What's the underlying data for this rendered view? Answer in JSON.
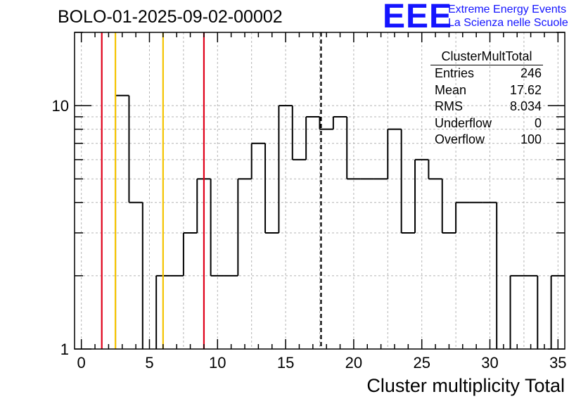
{
  "title": "BOLO-01-2025-09-02-00002",
  "logo": {
    "letters": "EEE",
    "line1": "Extreme Energy Events",
    "line2": "La Scienza nelle Scuole",
    "color": "#1414ff"
  },
  "stats": {
    "name": "ClusterMultTotal",
    "rows": [
      {
        "label": "Entries",
        "value": "246"
      },
      {
        "label": "Mean",
        "value": "17.62"
      },
      {
        "label": "RMS",
        "value": "8.034"
      },
      {
        "label": "Underflow",
        "value": "0"
      },
      {
        "label": "Overflow",
        "value": "100"
      }
    ]
  },
  "chart_data": {
    "type": "histogram",
    "title": "BOLO-01-2025-09-02-00002",
    "xlabel": "Cluster multiplicity Total",
    "ylabel": "",
    "xlim": [
      -0.5,
      35.5
    ],
    "ylim": [
      1,
      20
    ],
    "yscale": "log",
    "grid": true,
    "bin_width": 1,
    "bin_low_edges": [
      -0.5,
      0.5,
      1.5,
      2.5,
      3.5,
      4.5,
      5.5,
      6.5,
      7.5,
      8.5,
      9.5,
      10.5,
      11.5,
      12.5,
      13.5,
      14.5,
      15.5,
      16.5,
      17.5,
      18.5,
      19.5,
      20.5,
      21.5,
      22.5,
      23.5,
      24.5,
      25.5,
      26.5,
      27.5,
      28.5,
      29.5,
      30.5,
      31.5,
      32.5,
      33.5,
      34.5
    ],
    "counts": [
      0,
      0,
      0,
      11,
      4,
      0,
      2,
      2,
      3,
      5,
      2,
      2,
      5,
      7,
      3,
      10,
      6,
      9,
      8,
      9,
      5,
      5,
      5,
      8,
      3,
      6,
      5,
      3,
      4,
      4,
      4,
      0,
      2,
      2,
      0,
      2
    ],
    "x_ticks": [
      0,
      5,
      10,
      15,
      20,
      25,
      30,
      35
    ],
    "x_tick_labels": [
      "0",
      "5",
      "10",
      "15",
      "20",
      "25",
      "30",
      "35"
    ],
    "y_ticks": [
      1,
      10
    ],
    "y_tick_labels": [
      "1",
      "10"
    ],
    "vertical_lines": [
      {
        "x": 1.5,
        "color": "#e0001a",
        "style": "solid"
      },
      {
        "x": 2.5,
        "color": "#f5c400",
        "style": "solid"
      },
      {
        "x": 6.0,
        "color": "#f5c400",
        "style": "solid"
      },
      {
        "x": 9.0,
        "color": "#e0001a",
        "style": "solid"
      },
      {
        "x": 17.6,
        "color": "#000000",
        "style": "dashed"
      }
    ],
    "line_color": "#000000"
  }
}
